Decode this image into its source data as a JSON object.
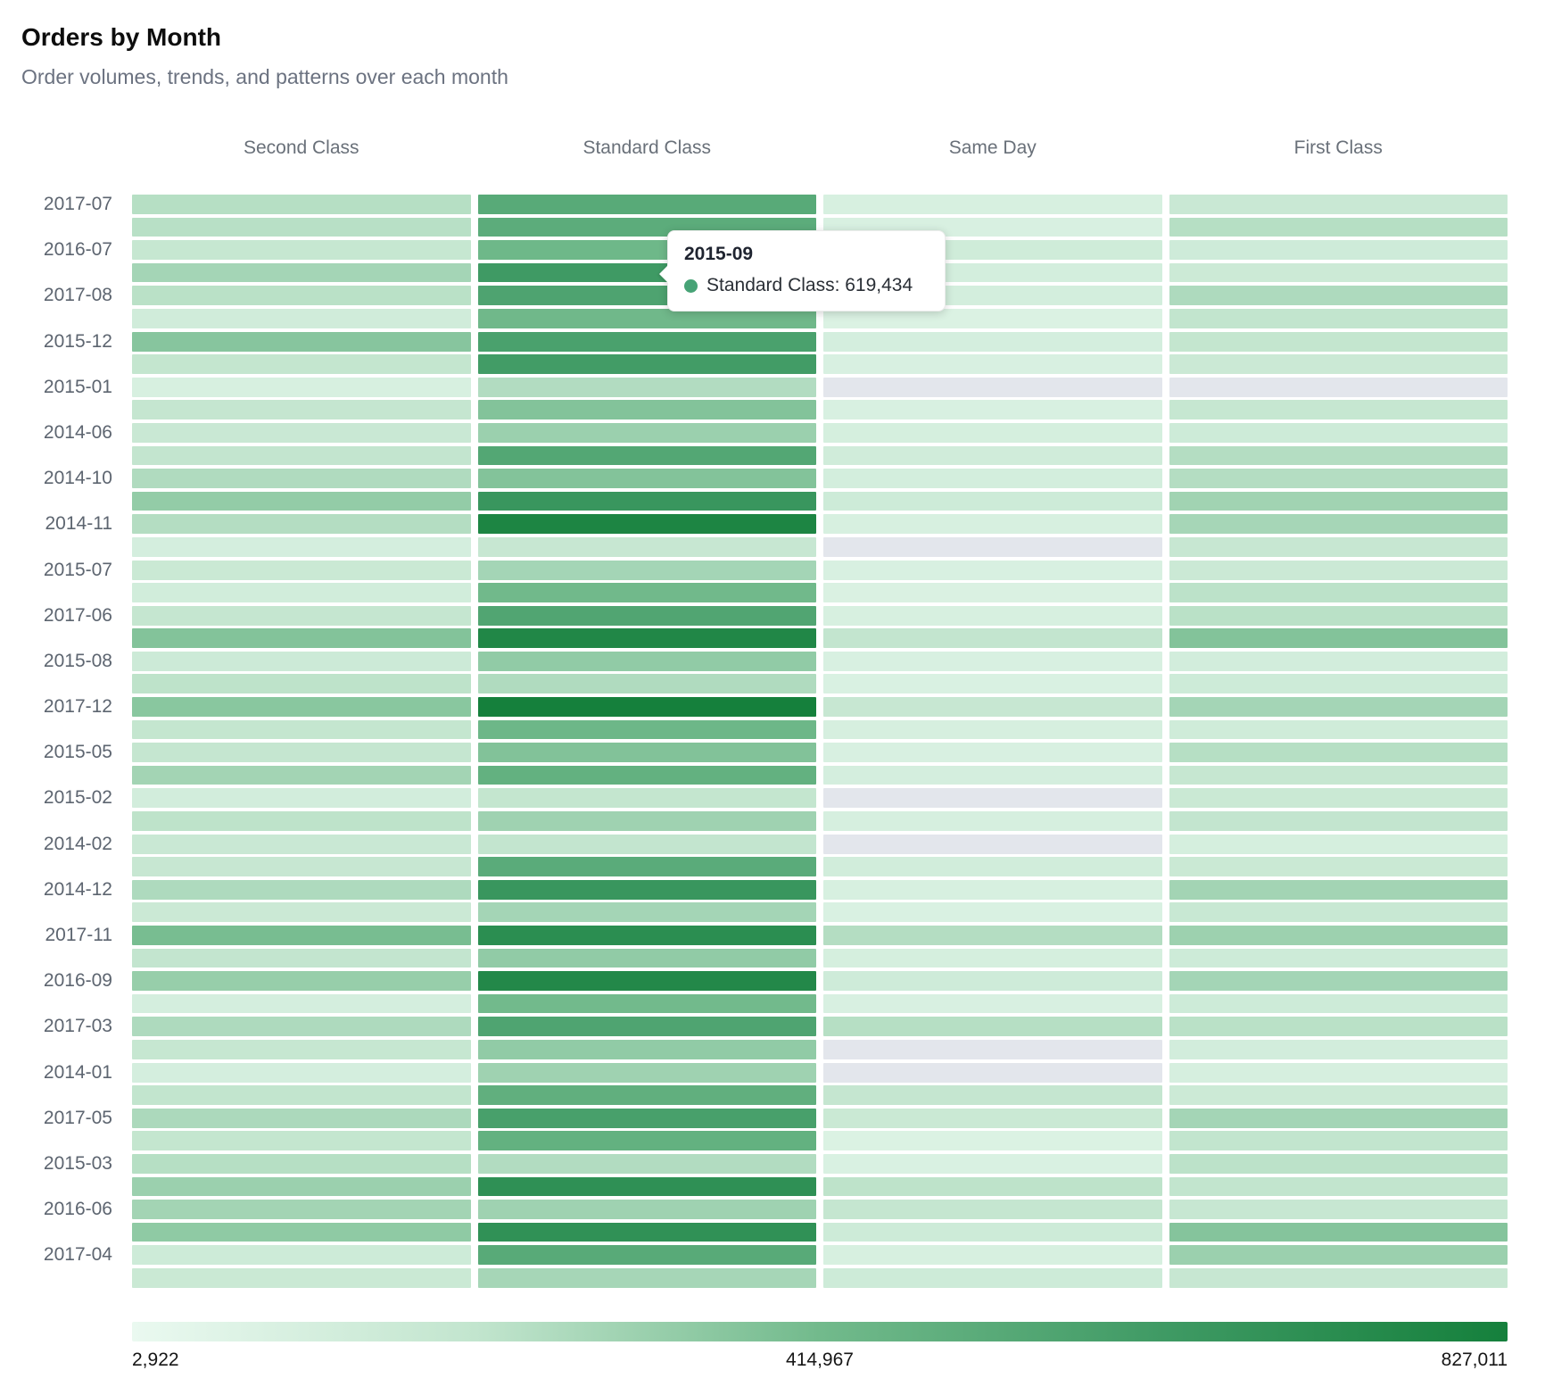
{
  "header": {
    "title": "Orders by Month",
    "subtitle": "Order volumes, trends, and patterns over each month"
  },
  "chart_data": {
    "type": "heatmap",
    "title": "Orders by Month",
    "columns": [
      "Second Class",
      "Standard Class",
      "Same Day",
      "First Class"
    ],
    "rows": [
      {
        "label": "2017-07",
        "values": [
          240000,
          520000,
          100000,
          175000
        ]
      },
      {
        "label": "",
        "values": [
          235000,
          505000,
          95000,
          240000
        ]
      },
      {
        "label": "2016-07",
        "values": [
          190000,
          430000,
          140000,
          145000
        ]
      },
      {
        "label": "",
        "values": [
          285000,
          619434,
          120000,
          160000
        ]
      },
      {
        "label": "2017-08",
        "values": [
          230000,
          560000,
          120000,
          260000
        ]
      },
      {
        "label": "",
        "values": [
          135000,
          425000,
          80000,
          210000
        ]
      },
      {
        "label": "2015-12",
        "values": [
          360000,
          575000,
          115000,
          200000
        ]
      },
      {
        "label": "",
        "values": [
          200000,
          610000,
          95000,
          165000
        ]
      },
      {
        "label": "2015-01",
        "values": [
          100000,
          250000,
          null,
          null
        ]
      },
      {
        "label": "",
        "values": [
          195000,
          370000,
          95000,
          190000
        ]
      },
      {
        "label": "2014-06",
        "values": [
          175000,
          310000,
          110000,
          150000
        ]
      },
      {
        "label": "",
        "values": [
          205000,
          540000,
          135000,
          245000
        ]
      },
      {
        "label": "2014-10",
        "values": [
          255000,
          370000,
          120000,
          245000
        ]
      },
      {
        "label": "",
        "values": [
          330000,
          650000,
          150000,
          295000
        ]
      },
      {
        "label": "2014-11",
        "values": [
          245000,
          790000,
          100000,
          280000
        ]
      },
      {
        "label": "",
        "values": [
          115000,
          185000,
          null,
          185000
        ]
      },
      {
        "label": "2015-07",
        "values": [
          170000,
          285000,
          95000,
          165000
        ]
      },
      {
        "label": "",
        "values": [
          130000,
          420000,
          85000,
          225000
        ]
      },
      {
        "label": "2017-06",
        "values": [
          195000,
          550000,
          100000,
          230000
        ]
      },
      {
        "label": "",
        "values": [
          370000,
          770000,
          205000,
          370000
        ]
      },
      {
        "label": "2015-08",
        "values": [
          155000,
          335000,
          95000,
          125000
        ]
      },
      {
        "label": "",
        "values": [
          220000,
          255000,
          90000,
          150000
        ]
      },
      {
        "label": "2017-12",
        "values": [
          355000,
          827011,
          185000,
          285000
        ]
      },
      {
        "label": "",
        "values": [
          200000,
          435000,
          105000,
          140000
        ]
      },
      {
        "label": "2015-05",
        "values": [
          195000,
          375000,
          95000,
          240000
        ]
      },
      {
        "label": "",
        "values": [
          290000,
          475000,
          115000,
          190000
        ]
      },
      {
        "label": "2015-02",
        "values": [
          125000,
          200000,
          null,
          170000
        ]
      },
      {
        "label": "",
        "values": [
          220000,
          300000,
          105000,
          205000
        ]
      },
      {
        "label": "2014-02",
        "values": [
          175000,
          205000,
          null,
          110000
        ]
      },
      {
        "label": "",
        "values": [
          185000,
          510000,
          130000,
          170000
        ]
      },
      {
        "label": "2014-12",
        "values": [
          260000,
          650000,
          100000,
          290000
        ]
      },
      {
        "label": "",
        "values": [
          165000,
          285000,
          90000,
          180000
        ]
      },
      {
        "label": "2017-11",
        "values": [
          400000,
          720000,
          245000,
          305000
        ]
      },
      {
        "label": "",
        "values": [
          205000,
          335000,
          110000,
          150000
        ]
      },
      {
        "label": "2016-09",
        "values": [
          320000,
          760000,
          145000,
          285000
        ]
      },
      {
        "label": "",
        "values": [
          115000,
          415000,
          95000,
          150000
        ]
      },
      {
        "label": "2017-03",
        "values": [
          260000,
          555000,
          240000,
          230000
        ]
      },
      {
        "label": "",
        "values": [
          190000,
          335000,
          null,
          125000
        ]
      },
      {
        "label": "2014-01",
        "values": [
          115000,
          300000,
          null,
          105000
        ]
      },
      {
        "label": "",
        "values": [
          210000,
          485000,
          195000,
          160000
        ]
      },
      {
        "label": "2017-05",
        "values": [
          265000,
          585000,
          170000,
          285000
        ]
      },
      {
        "label": "",
        "values": [
          200000,
          475000,
          80000,
          210000
        ]
      },
      {
        "label": "2015-03",
        "values": [
          240000,
          250000,
          90000,
          225000
        ]
      },
      {
        "label": "",
        "values": [
          310000,
          700000,
          220000,
          210000
        ]
      },
      {
        "label": "2016-06",
        "values": [
          290000,
          300000,
          195000,
          185000
        ]
      },
      {
        "label": "",
        "values": [
          340000,
          695000,
          150000,
          365000
        ]
      },
      {
        "label": "2017-04",
        "values": [
          150000,
          520000,
          100000,
          310000
        ]
      },
      {
        "label": "",
        "values": [
          170000,
          280000,
          150000,
          185000
        ]
      }
    ],
    "color_scale": {
      "min": 2922,
      "mid": 414967,
      "max": 827011,
      "min_label": "2,922",
      "mid_label": "414,967",
      "max_label": "827,011",
      "stops": [
        [
          0,
          "#eaf9f0"
        ],
        [
          0.25,
          "#c2e5ce"
        ],
        [
          0.5,
          "#72ba8c"
        ],
        [
          0.75,
          "#3f9a64"
        ],
        [
          1,
          "#15803c"
        ]
      ],
      "no_data_color": "#e3e6ec"
    },
    "tooltip": {
      "row_index": 3,
      "column_index": 1,
      "title": "2015-09",
      "series": "Standard Class",
      "value": "619,434",
      "text": "Standard Class: 619,434",
      "dot_color": "#47a376"
    }
  }
}
